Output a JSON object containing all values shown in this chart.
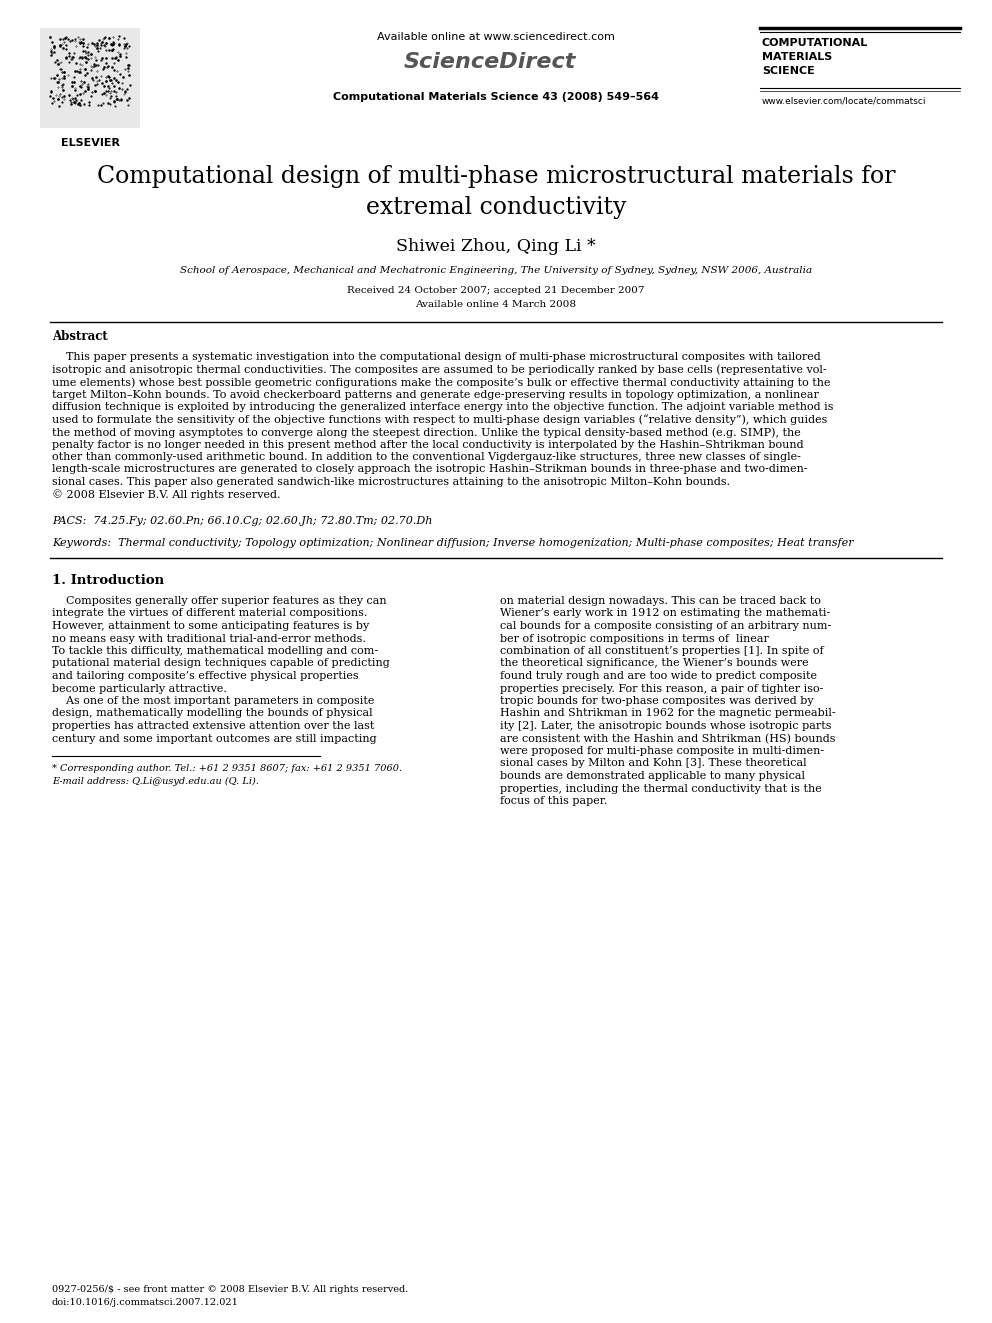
{
  "bg_color": "#ffffff",
  "title_line1": "Computational design of multi-phase microstructural materials for",
  "title_line2": "extremal conductivity",
  "authors": "Shiwei Zhou, Qing Li *",
  "affiliation": "School of Aerospace, Mechanical and Mechatronic Engineering, The University of Sydney, Sydney, NSW 2006, Australia",
  "date_line1": "Received 24 October 2007; accepted 21 December 2007",
  "date_line2": "Available online 4 March 2008",
  "journal_header_center": "Available online at www.sciencedirect.com",
  "sciencedirect_text": "ScienceDirect",
  "journal_info": "Computational Materials Science 43 (2008) 549–564",
  "journal_name_right": "COMPUTATIONAL\nMATERIALS\nSCIENCE",
  "journal_url": "www.elsevier.com/locate/commatsci",
  "elsevier_text": "ELSEVIER",
  "abstract_title": "Abstract",
  "abstract_lines": [
    "    This paper presents a systematic investigation into the computational design of multi-phase microstructural composites with tailored",
    "isotropic and anisotropic thermal conductivities. The composites are assumed to be periodically ranked by base cells (representative vol-",
    "ume elements) whose best possible geometric configurations make the composite’s bulk or effective thermal conductivity attaining to the",
    "target Milton–Kohn bounds. To avoid checkerboard patterns and generate edge-preserving results in topology optimization, a nonlinear",
    "diffusion technique is exploited by introducing the generalized interface energy into the objective function. The adjoint variable method is",
    "used to formulate the sensitivity of the objective functions with respect to multi-phase design variables (“relative density”), which guides",
    "the method of moving asymptotes to converge along the steepest direction. Unlike the typical density-based method (e.g. SIMP), the",
    "penalty factor is no longer needed in this present method after the local conductivity is interpolated by the Hashin–Shtrikman bound",
    "other than commonly-used arithmetic bound. In addition to the conventional Vigdergauz-like structures, three new classes of single-",
    "length-scale microstructures are generated to closely approach the isotropic Hashin–Strikman bounds in three-phase and two-dimen-",
    "sional cases. This paper also generated sandwich-like microstructures attaining to the anisotropic Milton–Kohn bounds.",
    "© 2008 Elsevier B.V. All rights reserved."
  ],
  "pacs": "PACS:  74.25.Fy; 02.60.Pn; 66.10.Cg; 02.60.Jh; 72.80.Tm; 02.70.Dh",
  "keywords": "Keywords:  Thermal conductivity; Topology optimization; Nonlinear diffusion; Inverse homogenization; Multi-phase composites; Heat transfer",
  "section1_title": "1. Introduction",
  "intro_left_lines": [
    "    Composites generally offer superior features as they can",
    "integrate the virtues of different material compositions.",
    "However, attainment to some anticipating features is by",
    "no means easy with traditional trial-and-error methods.",
    "To tackle this difficulty, mathematical modelling and com-",
    "putational material design techniques capable of predicting",
    "and tailoring composite’s effective physical properties",
    "become particularly attractive.",
    "    As one of the most important parameters in composite",
    "design, mathematically modelling the bounds of physical",
    "properties has attracted extensive attention over the last",
    "century and some important outcomes are still impacting"
  ],
  "intro_right_lines": [
    "on material design nowadays. This can be traced back to",
    "Wiener’s early work in 1912 on estimating the mathemati-",
    "cal bounds for a composite consisting of an arbitrary num-",
    "ber of isotropic compositions in terms of  linear",
    "combination of all constituent’s properties [1]. In spite of",
    "the theoretical significance, the Wiener’s bounds were",
    "found truly rough and are too wide to predict composite",
    "properties precisely. For this reason, a pair of tighter iso-",
    "tropic bounds for two-phase composites was derived by",
    "Hashin and Shtrikman in 1962 for the magnetic permeabil-",
    "ity [2]. Later, the anisotropic bounds whose isotropic parts",
    "are consistent with the Hashin and Shtrikman (HS) bounds",
    "were proposed for multi-phase composite in multi-dimen-",
    "sional cases by Milton and Kohn [3]. These theoretical",
    "bounds are demonstrated applicable to many physical",
    "properties, including the thermal conductivity that is the",
    "focus of this paper."
  ],
  "footnote_line1": "* Corresponding author. Tel.: +61 2 9351 8607; fax: +61 2 9351 7060.",
  "footnote_line2": "E-mail address: Q.Li@usyd.edu.au (Q. Li).",
  "footer_line1": "0927-0256/$ - see front matter © 2008 Elsevier B.V. All rights reserved.",
  "footer_line2": "doi:10.1016/j.commatsci.2007.12.021"
}
